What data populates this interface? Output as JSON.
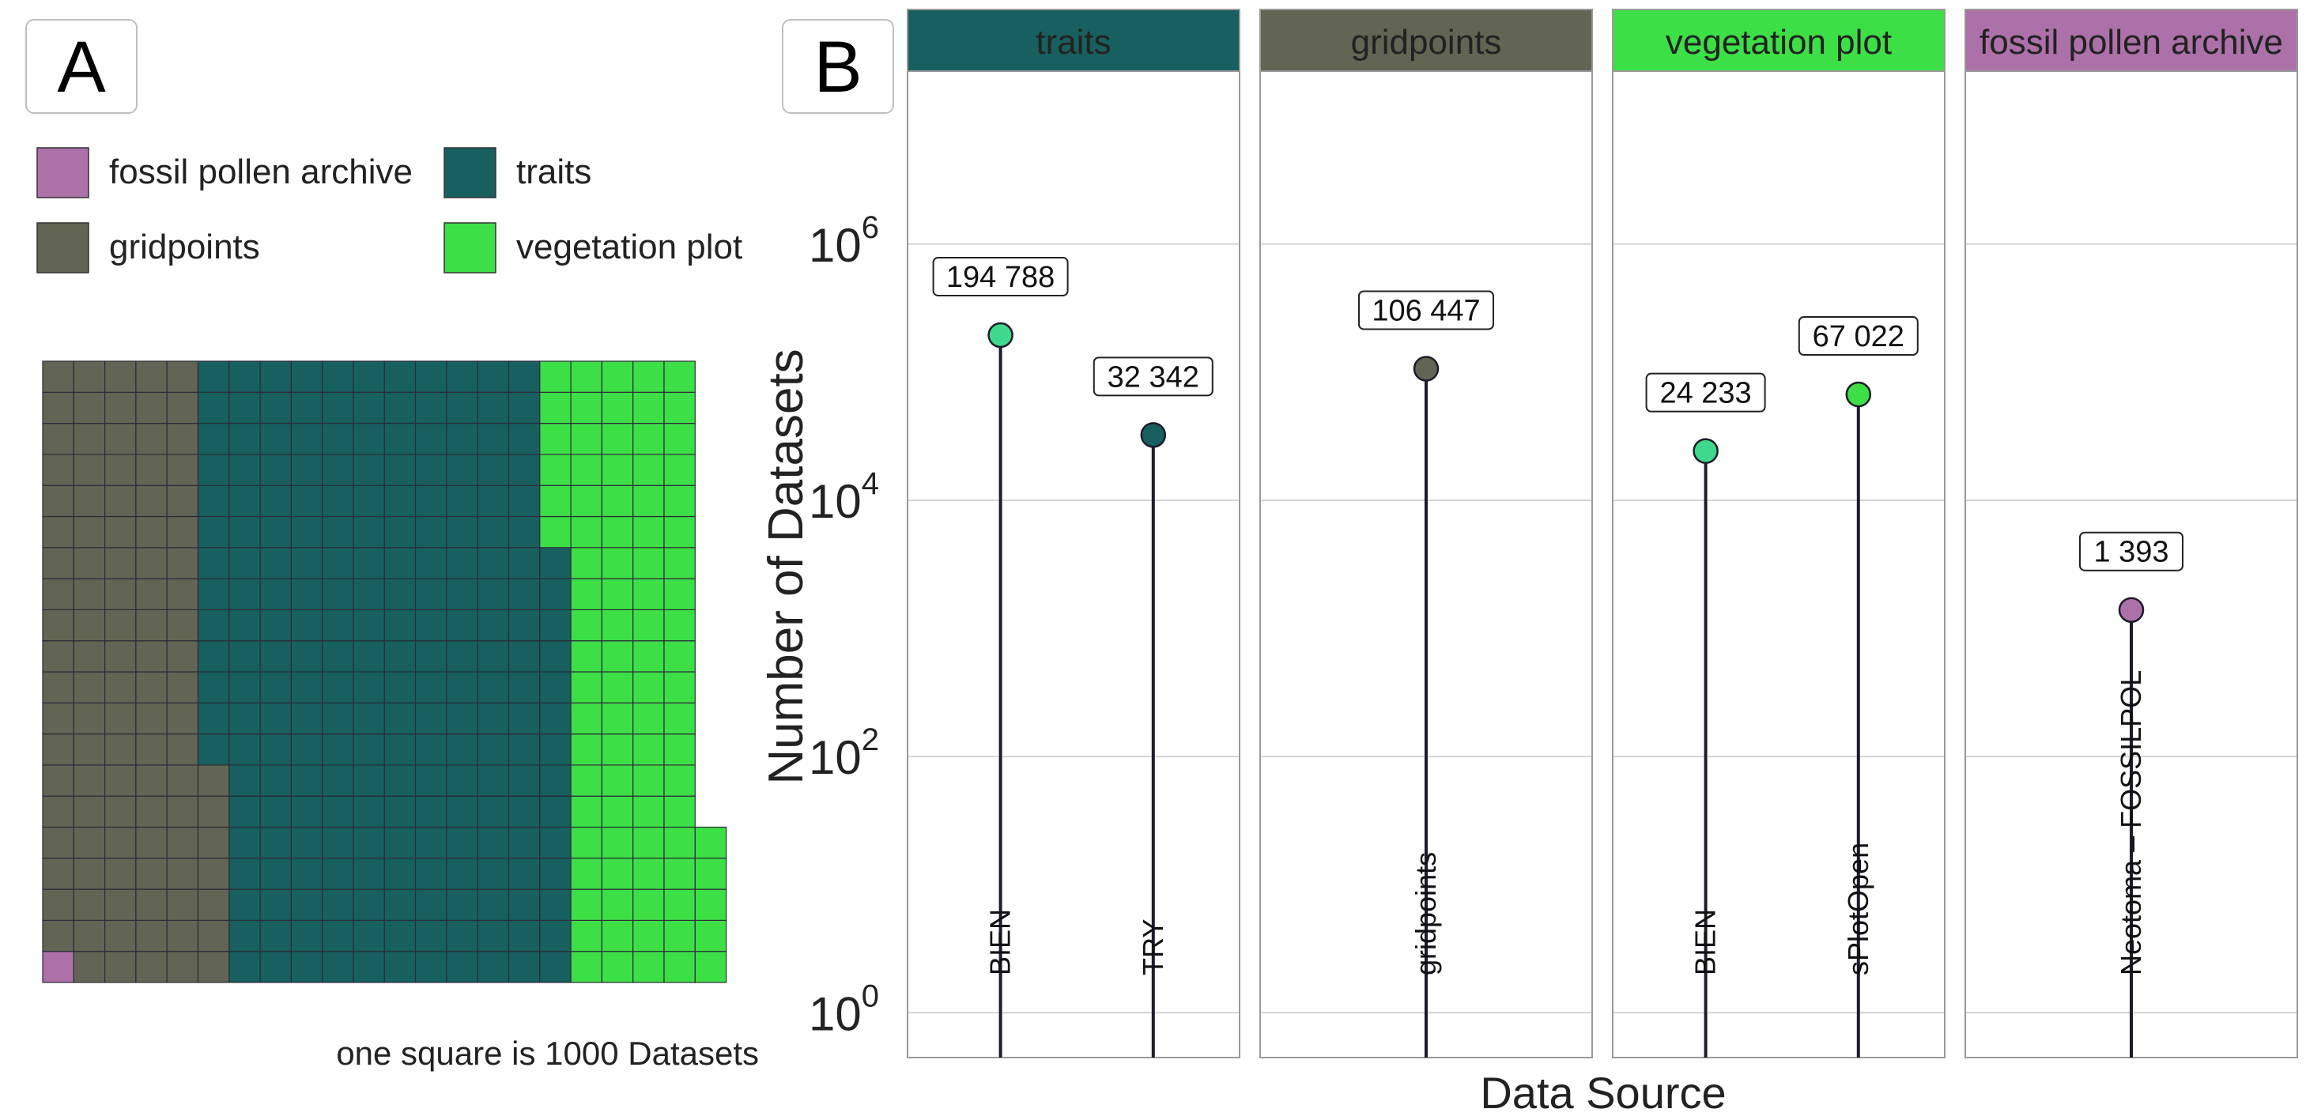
{
  "panel_labels": {
    "a": "A",
    "b": "B"
  },
  "colors": {
    "traits": "#17605f",
    "gridpoints": "#626553",
    "vegetation_plot": "#3ddf46",
    "fossil_pollen_archive": "#ad71a9",
    "bien_point": "#3ed98c",
    "stem": "#1c1c2a",
    "grid_line": "#d4d4d4",
    "panel_border": "#9a9a9a"
  },
  "legend": [
    {
      "label": "fossil pollen archive",
      "color": "#ad71a9"
    },
    {
      "label": "traits",
      "color": "#17605f"
    },
    {
      "label": "gridpoints",
      "color": "#626553"
    },
    {
      "label": "vegetation plot",
      "color": "#3ddf46"
    }
  ],
  "waffle_caption": "one square is 1000 Datasets",
  "chart_data": [
    {
      "type": "waffle",
      "unit": "one square is 1000 Datasets",
      "column_order_bottom_to_top": true,
      "squares_per_column": 20,
      "categories": [
        {
          "name": "fossil pollen archive",
          "squares": 1,
          "color": "#ad71a9"
        },
        {
          "name": "gridpoints",
          "squares": 106,
          "color": "#626553"
        },
        {
          "name": "traits",
          "squares": 227,
          "color": "#17605f"
        },
        {
          "name": "vegetation plot",
          "squares": 91,
          "color": "#3ddf46"
        }
      ]
    },
    {
      "type": "lollipop",
      "ylabel": "Number of Datasets",
      "xlabel": "Data Source",
      "yscale": "log10",
      "ylim_log10": [
        -0.35,
        7.35
      ],
      "yticks": [
        {
          "value": 1,
          "base": "10",
          "exp": "0"
        },
        {
          "value": 100,
          "base": "10",
          "exp": "2"
        },
        {
          "value": 10000,
          "base": "10",
          "exp": "4"
        },
        {
          "value": 1000000,
          "base": "10",
          "exp": "6"
        }
      ],
      "grid": true,
      "facets": [
        {
          "title": "traits",
          "header_color": "#17605f",
          "points": [
            {
              "source": "BIEN",
              "value": 194788,
              "label": "194 788",
              "color": "#3ed98c"
            },
            {
              "source": "TRY",
              "value": 32342,
              "label": "32 342",
              "color": "#17605f"
            }
          ]
        },
        {
          "title": "gridpoints",
          "header_color": "#626553",
          "points": [
            {
              "source": "gridpoints",
              "value": 106447,
              "label": "106 447",
              "color": "#626553"
            }
          ]
        },
        {
          "title": "vegetation plot",
          "header_color": "#3ddf46",
          "points": [
            {
              "source": "BIEN",
              "value": 24233,
              "label": "24 233",
              "color": "#3ed98c"
            },
            {
              "source": "sPlotOpen",
              "value": 67022,
              "label": "67 022",
              "color": "#3ddf46"
            }
          ]
        },
        {
          "title": "fossil pollen archive",
          "header_color": "#ad71a9",
          "points": [
            {
              "source": "Neotoma – FOSSILPOL",
              "value": 1393,
              "label": "1 393",
              "color": "#ad71a9"
            }
          ]
        }
      ]
    }
  ]
}
